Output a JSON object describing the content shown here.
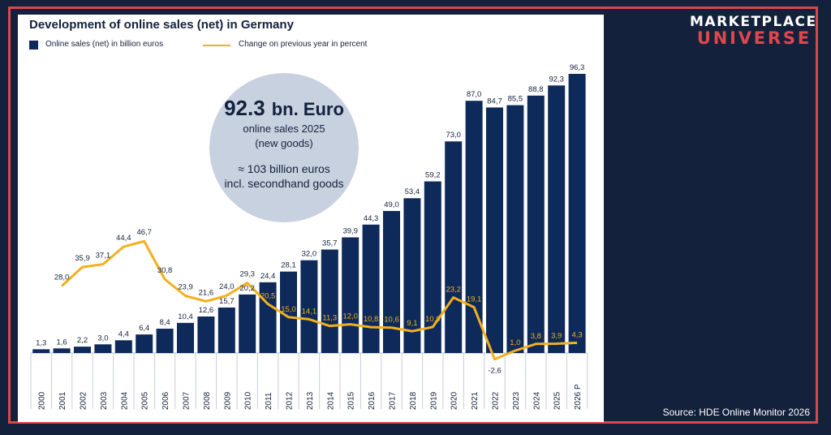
{
  "brand": {
    "line1": "MARKETPLACE",
    "line2": "UNIVERSE"
  },
  "source": "Source: HDE Online Monitor 2026",
  "callout": {
    "headline_number": "92.3",
    "headline_unit": "bn. Euro",
    "line1": "online sales 2025",
    "line2": "(new goods)",
    "line3": "≈ 103 billion euros",
    "line4": "incl. secondhand goods"
  },
  "colors": {
    "bar": "#0e2a5a",
    "line": "#f2b01e",
    "background": "#14213d",
    "frame": "#d9474b",
    "callout": "#c8d1df"
  },
  "chart_data": {
    "type": "bar",
    "title": "Development of online sales (net) in Germany",
    "categories": [
      "2000",
      "2001",
      "2002",
      "2003",
      "2004",
      "2005",
      "2006",
      "2007",
      "2008",
      "2009",
      "2010",
      "2011",
      "2012",
      "2013",
      "2014",
      "2015",
      "2016",
      "2017",
      "2018",
      "2019",
      "2020",
      "2021",
      "2022",
      "2023",
      "2024",
      "2025",
      "2026 P"
    ],
    "series": [
      {
        "name": "Online sales (net) in billion euros",
        "type": "bar",
        "values": [
          1.3,
          1.6,
          2.2,
          3.0,
          4.4,
          6.4,
          8.4,
          10.4,
          12.6,
          15.7,
          20.2,
          24.4,
          28.1,
          32.0,
          35.7,
          39.9,
          44.3,
          49.0,
          53.4,
          59.2,
          73.0,
          87.0,
          84.7,
          85.5,
          88.8,
          92.3,
          96.3
        ],
        "labels": [
          "1,3",
          "1,6",
          "2,2",
          "3,0",
          "4,4",
          "6,4",
          "8,4",
          "10,4",
          "12,6",
          "15,7",
          "20,2",
          "24,4",
          "28,1",
          "32,0",
          "35,7",
          "39,9",
          "44,3",
          "49,0",
          "53,4",
          "59,2",
          "73,0",
          "87,0",
          "84,7",
          "85,5",
          "88,8",
          "92,3",
          "96,3"
        ]
      },
      {
        "name": "Change on previous year in percent",
        "type": "line",
        "values": [
          null,
          28.0,
          35.9,
          37.1,
          44.4,
          46.7,
          30.8,
          23.9,
          21.6,
          24.0,
          29.3,
          20.5,
          15.0,
          14.1,
          11.3,
          12.0,
          10.8,
          10.6,
          9.1,
          10.9,
          23.2,
          19.1,
          -2.6,
          1.0,
          3.8,
          3.9,
          4.3
        ],
        "labels": [
          "",
          "28,0",
          "35,9",
          "37,1",
          "44,4",
          "46,7",
          "30,8",
          "23,9",
          "21,6",
          "24,0",
          "29,3",
          "20,5",
          "15,0",
          "14,1",
          "11,3",
          "12,0",
          "10,8",
          "10,6",
          "9,1",
          "10,9",
          "23,2",
          "19,1",
          "-2,6",
          "1,0",
          "3,8",
          "3,9",
          "4,3"
        ]
      }
    ],
    "legend_position": "top-left",
    "grid": false
  }
}
